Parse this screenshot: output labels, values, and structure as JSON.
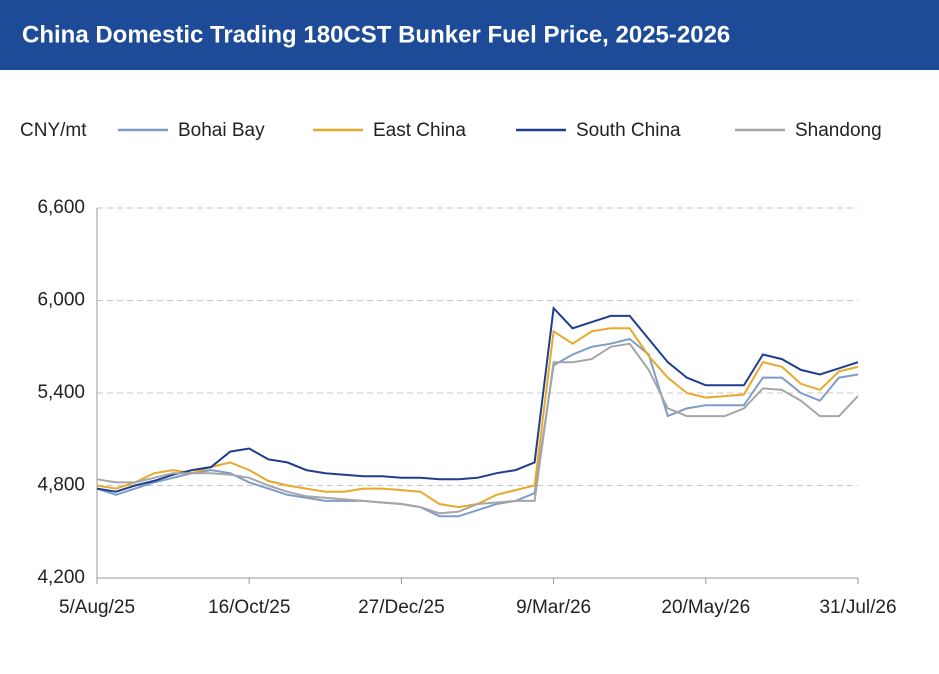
{
  "chart_data": {
    "type": "line",
    "title": "China Domestic Trading 180CST Bunker Fuel Price, 2025-2026",
    "y_label": "CNY/mt",
    "x": [
      "5/Aug/25",
      "14/Aug/25",
      "23/Aug/25",
      "1/Sep/25",
      "10/Sep/25",
      "19/Sep/25",
      "28/Sep/25",
      "7/Oct/25",
      "16/Oct/25",
      "25/Oct/25",
      "3/Nov/25",
      "12/Nov/25",
      "21/Nov/25",
      "30/Nov/25",
      "9/Dec/25",
      "18/Dec/25",
      "27/Dec/25",
      "5/Jan/26",
      "14/Jan/26",
      "23/Jan/26",
      "1/Feb/26",
      "10/Feb/26",
      "19/Feb/26",
      "28/Feb/26",
      "9/Mar/26",
      "18/Mar/26",
      "27/Mar/26",
      "5/Apr/26",
      "14/Apr/26",
      "23/Apr/26",
      "2/May/26",
      "11/May/26",
      "20/May/26",
      "29/May/26",
      "7/Jun/26",
      "16/Jun/26",
      "25/Jun/26",
      "4/Jul/26",
      "13/Jul/26",
      "22/Jul/26",
      "31/Jul/26"
    ],
    "series": [
      {
        "name": "Bohai Bay",
        "color": "#7f9cc7",
        "values": [
          4780,
          4740,
          4780,
          4820,
          4850,
          4880,
          4900,
          4880,
          4820,
          4780,
          4740,
          4720,
          4700,
          4700,
          4700,
          4690,
          4680,
          4660,
          4600,
          4600,
          4640,
          4680,
          4700,
          4750,
          5580,
          5650,
          5700,
          5720,
          5750,
          5650,
          5250,
          5300,
          5320,
          5320,
          5320,
          5500,
          5500,
          5400,
          5350,
          5500,
          5520
        ]
      },
      {
        "name": "East China",
        "color": "#e8a92a",
        "values": [
          4800,
          4780,
          4820,
          4880,
          4900,
          4880,
          4920,
          4950,
          4900,
          4830,
          4800,
          4780,
          4760,
          4760,
          4780,
          4780,
          4770,
          4760,
          4680,
          4660,
          4680,
          4740,
          4770,
          4800,
          5800,
          5720,
          5800,
          5820,
          5820,
          5640,
          5500,
          5400,
          5370,
          5380,
          5390,
          5600,
          5570,
          5460,
          5420,
          5540,
          5570
        ]
      },
      {
        "name": "South China",
        "color": "#1f3e8f",
        "values": [
          4780,
          4760,
          4800,
          4830,
          4870,
          4900,
          4920,
          5020,
          5040,
          4970,
          4950,
          4900,
          4880,
          4870,
          4860,
          4860,
          4850,
          4850,
          4840,
          4840,
          4850,
          4880,
          4900,
          4950,
          5950,
          5820,
          5860,
          5900,
          5900,
          5750,
          5600,
          5500,
          5450,
          5450,
          5450,
          5650,
          5620,
          5550,
          5520,
          5560,
          5600
        ]
      },
      {
        "name": "Shandong",
        "color": "#a6a6a6",
        "values": [
          4840,
          4820,
          4820,
          4850,
          4880,
          4880,
          4880,
          4870,
          4850,
          4800,
          4760,
          4730,
          4720,
          4710,
          4700,
          4690,
          4680,
          4660,
          4620,
          4630,
          4680,
          4690,
          4700,
          4700,
          5600,
          5600,
          5620,
          5700,
          5720,
          5550,
          5300,
          5250,
          5250,
          5250,
          5300,
          5430,
          5420,
          5350,
          5250,
          5250,
          5380
        ]
      }
    ],
    "xlim": [
      "5/Aug/25",
      "31/Jul/26"
    ],
    "xticks": [
      "5/Aug/25",
      "16/Oct/25",
      "27/Dec/25",
      "9/Mar/26",
      "20/May/26",
      "31/Jul/26"
    ],
    "ylim": [
      4200,
      6600
    ],
    "yticks": [
      {
        "value": 4200,
        "label": "4,200"
      },
      {
        "value": 4800,
        "label": "4,800"
      },
      {
        "value": 5400,
        "label": "5,400"
      },
      {
        "value": 6000,
        "label": "6,000"
      },
      {
        "value": 6600,
        "label": "6,600"
      }
    ],
    "grid": true
  }
}
